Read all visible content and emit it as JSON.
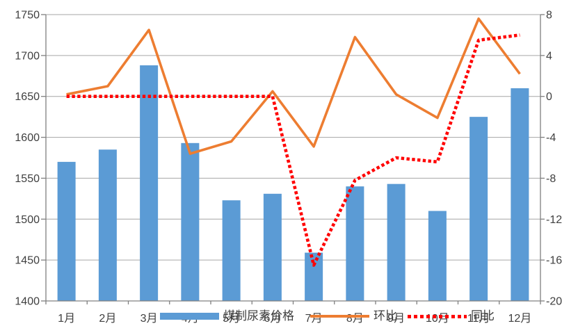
{
  "chart_data": {
    "type": "bar",
    "subtype": "combo-bar-line-dual-axis",
    "title": "",
    "xlabel": "",
    "ylabel": "",
    "categories": [
      "1月",
      "2月",
      "3月",
      "4月",
      "5月",
      "6月",
      "7月",
      "8月",
      "9月",
      "10月",
      "11月",
      "12月"
    ],
    "series": [
      {
        "name": "煤制尿素价格",
        "chart_type": "bar",
        "axis": "left",
        "color": "#5B9BD5",
        "values": [
          1570,
          1585,
          1688,
          1593,
          1523,
          1531,
          1459,
          1540,
          1543,
          1510,
          1625,
          1660
        ]
      },
      {
        "name": "环比",
        "chart_type": "line",
        "line_style": "solid",
        "axis": "right",
        "color": "#ED7D31",
        "values": [
          0.2,
          1.0,
          6.5,
          -5.6,
          -4.4,
          0.5,
          -4.9,
          5.8,
          0.2,
          -2.1,
          7.6,
          2.2
        ]
      },
      {
        "name": "同比",
        "chart_type": "line",
        "line_style": "dotted",
        "axis": "right",
        "color": "#FF0000",
        "values": [
          0,
          0,
          0,
          0,
          0,
          0,
          -16.5,
          -8.2,
          -6.0,
          -6.4,
          5.5,
          6.0
        ]
      }
    ],
    "left_axis": {
      "min": 1400,
      "max": 1750,
      "step": 50,
      "tick_labels": [
        "1750",
        "1700",
        "1650",
        "1600",
        "1550",
        "1500",
        "1450",
        "1400"
      ]
    },
    "right_axis": {
      "min": -20,
      "max": 8,
      "step": 4,
      "tick_labels": [
        "8",
        "4",
        "0",
        "-4",
        "-8",
        "-12",
        "-16",
        "-20"
      ]
    },
    "grid": "horizontal",
    "legend_position": "bottom"
  },
  "legend": {
    "items": [
      {
        "label": "煤制尿素价格",
        "swatch": "bar",
        "color": "#5B9BD5"
      },
      {
        "label": "环比",
        "swatch": "solid-line",
        "color": "#ED7D31"
      },
      {
        "label": "同比",
        "swatch": "dotted-line",
        "color": "#FF0000"
      }
    ]
  },
  "colors": {
    "bar": "#5B9BD5",
    "mom_line": "#ED7D31",
    "yoy_line": "#FF0000",
    "gridline": "#A6A6A6",
    "axis_line": "#808080",
    "text": "#3f3f3f",
    "background": "#FFFFFF"
  }
}
